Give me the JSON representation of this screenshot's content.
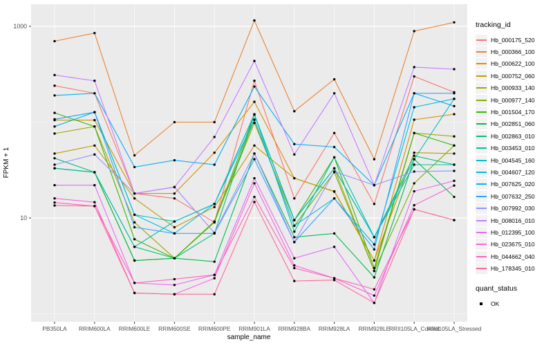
{
  "chart_data": {
    "type": "line",
    "title": "",
    "xlabel": "sample_name",
    "ylabel": "FPKM + 1",
    "y_scale": "log10",
    "y_ticks": [
      10,
      1000
    ],
    "y_minor_gridlines": [
      1,
      100
    ],
    "ylim": [
      0.85,
      1700
    ],
    "grid": "on",
    "legend_position": "right",
    "panel_bg": "#EBEBEB",
    "grid_major_color": "#FFFFFF",
    "grid_minor_color": "#F5F5F5",
    "tick_text_color": "#4D4D4D",
    "point_color": "#000000",
    "legend_title": "tracking_id",
    "quant_legend": {
      "title": "quant_status",
      "items": [
        "OK"
      ]
    },
    "categories": [
      "PB350LA",
      "RRIM600LA",
      "RRIM600LE",
      "RRIM600SE",
      "RRIM600PE",
      "RRIM901LA",
      "RRIM928BA",
      "RRIM928LA",
      "RRIM928LE",
      "RRII105LA_Control",
      "RRII105LA_Stressed"
    ],
    "series": [
      {
        "name": "Hb_000175_520",
        "color": "#F8766D",
        "values": [
          240,
          200,
          18,
          16,
          9,
          270,
          16,
          77,
          14,
          300,
          205
        ]
      },
      {
        "name": "Hb_000366_100",
        "color": "#EA8331",
        "values": [
          700,
          850,
          45,
          100,
          100,
          1150,
          130,
          280,
          41,
          890,
          1100
        ]
      },
      {
        "name": "Hb_000622_100",
        "color": "#D89000",
        "values": [
          105,
          105,
          18,
          18,
          48,
          163,
          26,
          19,
          3.6,
          106,
          121
        ]
      },
      {
        "name": "Hb_000752_060",
        "color": "#C09B00",
        "values": [
          47,
          57,
          16,
          8,
          13,
          57,
          26,
          18.8,
          3.6,
          48,
          47
        ]
      },
      {
        "name": "Hb_000933_140",
        "color": "#A3A500",
        "values": [
          76,
          90,
          9,
          3.8,
          9.2,
          98,
          9.5,
          33,
          2.8,
          77,
          71
        ]
      },
      {
        "name": "Hb_000977_140",
        "color": "#7CAE00",
        "values": [
          33,
          30,
          3.6,
          3.8,
          9,
          106,
          8.3,
          30,
          2.8,
          23,
          57
        ]
      },
      {
        "name": "Hb_001504_170",
        "color": "#39B600",
        "values": [
          125,
          90,
          6,
          3.8,
          9.2,
          120,
          9.5,
          43,
          3,
          77,
          57
        ]
      },
      {
        "name": "Hb_002851_060",
        "color": "#00BB4E",
        "values": [
          33,
          30,
          3.6,
          3.8,
          3.5,
          47,
          6.3,
          6.9,
          2.4,
          41,
          16.6
        ]
      },
      {
        "name": "Hb_002863_010",
        "color": "#00BF7D",
        "values": [
          42,
          30,
          5,
          3.8,
          6.9,
          120,
          9.5,
          33,
          6.3,
          44.6,
          36
        ]
      },
      {
        "name": "Hb_003453_010",
        "color": "#00C1A3",
        "values": [
          33,
          30,
          5,
          9.2,
          14,
          121,
          7.2,
          43,
          6.3,
          36,
          36
        ]
      },
      {
        "name": "Hb_004545_160",
        "color": "#00BFC4",
        "values": [
          107,
          127,
          10.8,
          9.2,
          14,
          120,
          9.5,
          33,
          6.3,
          41,
          175
        ]
      },
      {
        "name": "Hb_004607_120",
        "color": "#00BAE0",
        "values": [
          90,
          127,
          10.8,
          6.9,
          14,
          106,
          8.3,
          16,
          5.3,
          143,
          175
        ]
      },
      {
        "name": "Hb_007625_020",
        "color": "#00B0F6",
        "values": [
          190,
          200,
          34,
          40,
          36,
          235,
          59,
          55,
          22,
          200,
          147
        ]
      },
      {
        "name": "Hb_007632_250",
        "color": "#35A2FF",
        "values": [
          107,
          127,
          8,
          6.9,
          6.9,
          41,
          5.6,
          16,
          4.7,
          200,
          200
        ]
      },
      {
        "name": "Hb_007992_030",
        "color": "#9590FF",
        "values": [
          36,
          46,
          18,
          21,
          7,
          47,
          5.6,
          30.5,
          22,
          30.5,
          31
        ]
      },
      {
        "name": "Hb_008016_010",
        "color": "#C77CFF",
        "values": [
          310,
          270,
          18,
          21,
          70,
          435,
          46,
          200,
          22,
          375,
          357
        ]
      },
      {
        "name": "Hb_012395_100",
        "color": "#E76BF3",
        "values": [
          22,
          22,
          2.1,
          2,
          2.55,
          26,
          3.8,
          5,
          1.3,
          19,
          24.4
        ]
      },
      {
        "name": "Hb_023675_010",
        "color": "#FA62DB",
        "values": [
          16,
          14.6,
          1.65,
          1.6,
          2.35,
          23,
          3.2,
          2.35,
          1.55,
          13.6,
          21.8
        ]
      },
      {
        "name": "Hb_044662_040",
        "color": "#FF62BC",
        "values": [
          14.5,
          13.3,
          2.1,
          2.3,
          2.55,
          16.6,
          3,
          2.35,
          1.8,
          12.3,
          9.5
        ]
      },
      {
        "name": "Hb_178345_010",
        "color": "#FF6A98",
        "values": [
          13.5,
          13.3,
          1.65,
          1.6,
          1.6,
          14.7,
          2.2,
          2.25,
          1.3,
          12.3,
          9.5
        ]
      }
    ]
  }
}
